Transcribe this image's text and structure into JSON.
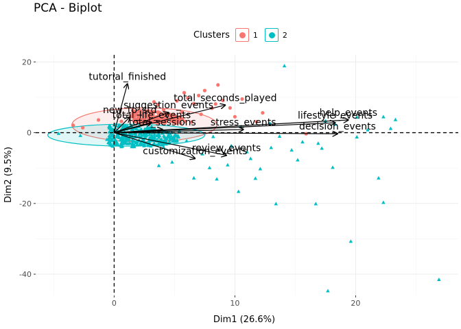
{
  "chart_data": {
    "type": "scatter",
    "title": "PCA - Biplot",
    "xlabel": "Dim1 (26.6%)",
    "ylabel": "Dim2 (9.5%)",
    "xlim": [
      -6.5,
      28.5
    ],
    "ylim": [
      -46,
      22
    ],
    "xticks": [
      0,
      10,
      20
    ],
    "yticks": [
      20,
      0,
      -20,
      -40
    ],
    "xtick_labels": [
      "0",
      "10",
      "20"
    ],
    "ytick_labels": [
      "20",
      "0",
      "-20",
      "-40"
    ],
    "grid": true,
    "legend": {
      "title": "Clusters",
      "position": "top",
      "entries": [
        {
          "label": "1",
          "color": "#F8766D"
        },
        {
          "label": "2",
          "color": "#00BFC4"
        }
      ]
    },
    "reference_lines": {
      "x": 0,
      "y": 0
    },
    "variables": [
      {
        "label": "tutorial_finished",
        "x": 1.1,
        "y": 13.8
      },
      {
        "label": "total_seconds_played",
        "x": 9.2,
        "y": 7.8
      },
      {
        "label": "suggestion_events",
        "x": 4.5,
        "y": 5.7
      },
      {
        "label": "new_to_std",
        "x": 1.3,
        "y": 4.4
      },
      {
        "label": "total_life_events",
        "x": 3.1,
        "y": 2.9
      },
      {
        "label": "help_events",
        "x": 19.4,
        "y": 3.6
      },
      {
        "label": "lifestyle_events",
        "x": 18.3,
        "y": 2.8
      },
      {
        "label": "decision_events",
        "x": 18.5,
        "y": -0.3
      },
      {
        "label": "stress_events",
        "x": 10.7,
        "y": 0.9
      },
      {
        "label": "total_sessions",
        "x": 4.0,
        "y": 0.9
      },
      {
        "label": "customization_events",
        "x": 6.7,
        "y": -7.3
      },
      {
        "label": "review_events",
        "x": 9.3,
        "y": -6.4
      }
    ],
    "series": [
      {
        "name": "1",
        "color": "#F8766D",
        "marker": "circle",
        "ellipse": {
          "cx": 2.5,
          "cy": 2.2,
          "rx": 6.0,
          "ry": 4.8
        },
        "points": [
          [
            7.5,
            11.9
          ],
          [
            5.8,
            11.3
          ],
          [
            8.6,
            13.5
          ],
          [
            6.1,
            9.8
          ],
          [
            7.0,
            10.5
          ],
          [
            5.2,
            9.0
          ],
          [
            3.6,
            7.9
          ],
          [
            4.1,
            6.5
          ],
          [
            6.6,
            8.2
          ],
          [
            9.0,
            9.1
          ],
          [
            10.6,
            9.5
          ],
          [
            8.1,
            6.9
          ],
          [
            11.8,
            3.1
          ],
          [
            10.0,
            4.5
          ],
          [
            2.2,
            5.8
          ],
          [
            1.4,
            4.5
          ],
          [
            0.6,
            3.2
          ],
          [
            2.9,
            2.4
          ],
          [
            -1.3,
            3.6
          ],
          [
            -2.6,
            1.4
          ],
          [
            -3.4,
            2.1
          ],
          [
            4.8,
            3.9
          ],
          [
            6.4,
            3.0
          ],
          [
            15.9,
            -0.3
          ],
          [
            7.2,
            5.2
          ],
          [
            5.6,
            5.8
          ],
          [
            8.4,
            8.1
          ],
          [
            9.6,
            7.0
          ],
          [
            12.3,
            5.6
          ],
          [
            3.3,
            8.7
          ]
        ]
      },
      {
        "name": "2",
        "color": "#00BFC4",
        "marker": "triangle",
        "ellipse": {
          "cx": 1.0,
          "cy": -0.7,
          "rx": 6.5,
          "ry": 3.1
        },
        "points": [
          [
            14.1,
            18.9
          ],
          [
            20.1,
            4.4
          ],
          [
            22.3,
            4.5
          ],
          [
            23.3,
            3.7
          ],
          [
            22.9,
            1.2
          ],
          [
            21.0,
            0.8
          ],
          [
            20.1,
            -1.2
          ],
          [
            17.2,
            -4.4
          ],
          [
            18.1,
            -9.8
          ],
          [
            21.9,
            -12.8
          ],
          [
            22.3,
            -19.7
          ],
          [
            16.7,
            -20.1
          ],
          [
            13.4,
            -20.1
          ],
          [
            19.6,
            -30.7
          ],
          [
            26.9,
            -41.5
          ],
          [
            17.7,
            -44.7
          ],
          [
            14.7,
            -4.9
          ],
          [
            15.6,
            -2.6
          ],
          [
            13.0,
            -4.2
          ],
          [
            12.1,
            -10.2
          ],
          [
            11.7,
            -12.9
          ],
          [
            10.3,
            -16.6
          ],
          [
            8.5,
            -13.1
          ],
          [
            6.6,
            -12.8
          ],
          [
            3.7,
            -9.3
          ],
          [
            4.8,
            -8.3
          ],
          [
            9.4,
            -9.1
          ],
          [
            7.3,
            -6.0
          ],
          [
            11.0,
            -5.4
          ],
          [
            15.2,
            -7.7
          ],
          [
            16.9,
            -3.0
          ],
          [
            18.3,
            2.4
          ],
          [
            17.5,
            3.3
          ],
          [
            12.9,
            2.7
          ],
          [
            10.5,
            1.8
          ],
          [
            8.2,
            -1.1
          ],
          [
            6.0,
            -2.3
          ],
          [
            4.1,
            -4.1
          ],
          [
            2.7,
            -2.9
          ],
          [
            1.3,
            -1.1
          ],
          [
            0.4,
            -0.2
          ],
          [
            -0.6,
            -1.9
          ],
          [
            -2.8,
            -0.8
          ],
          [
            -4.6,
            -0.2
          ],
          [
            3.1,
            1.8
          ],
          [
            5.4,
            0.6
          ],
          [
            9.7,
            -3.7
          ],
          [
            13.7,
            -1.0
          ],
          [
            11.3,
            -7.3
          ],
          [
            7.9,
            -9.9
          ]
        ]
      }
    ]
  }
}
